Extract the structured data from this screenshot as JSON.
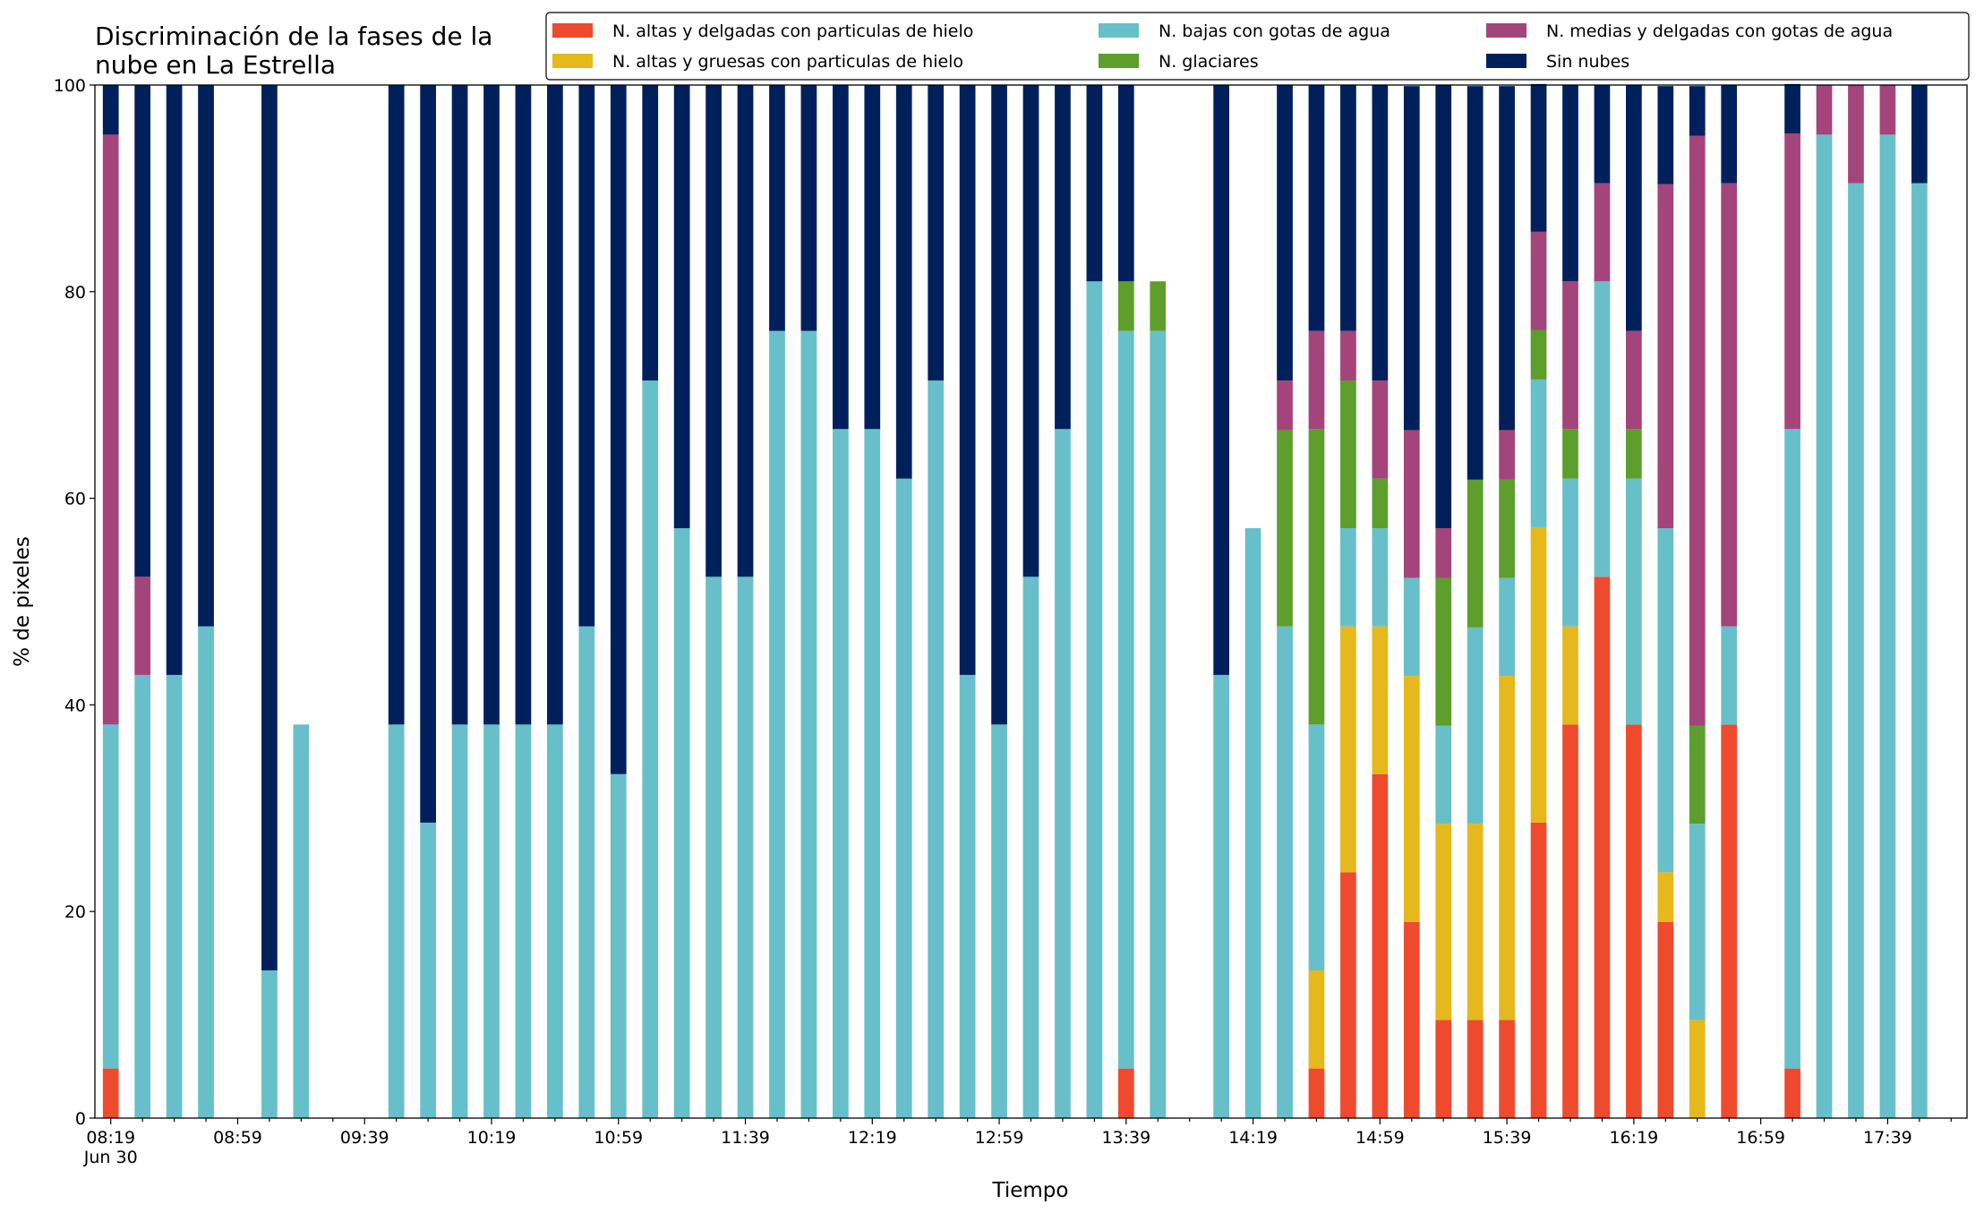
{
  "chart_data": {
    "type": "stacked_bar",
    "title": "Discriminación de la fases de la\nnube en La Estrella",
    "xlabel": "Tiempo",
    "ylabel": "% de pixeles",
    "categories": [
      "08:19\nJun 30",
      null,
      null,
      null,
      "08:59",
      null,
      null,
      null,
      "09:39",
      null,
      null,
      null,
      "10:19",
      null,
      null,
      null,
      "10:59",
      null,
      null,
      null,
      "11:39",
      null,
      null,
      null,
      "12:19",
      null,
      null,
      null,
      "12:59",
      null,
      null,
      null,
      "13:39",
      null,
      null,
      null,
      "14:19",
      null,
      null,
      null,
      "14:59",
      null,
      null,
      null,
      "15:39",
      null,
      null,
      null,
      "16:19",
      null,
      null,
      null,
      "16:59",
      null,
      null,
      null,
      "17:39",
      null,
      null
    ],
    "ylim": [
      0,
      100
    ],
    "yticks": [
      0,
      20,
      40,
      60,
      80,
      100
    ],
    "grid": false,
    "legend": "upper right",
    "series": [
      {
        "name": "N. altas y delgadas con particulas de hielo",
        "color": "#ef4a2e",
        "values": [
          4.8,
          0,
          0,
          0,
          0,
          0,
          0,
          0,
          0,
          0,
          0,
          0,
          0,
          0,
          0,
          0,
          0,
          0,
          0,
          0,
          0,
          0,
          0,
          0,
          0,
          0,
          0,
          0,
          0,
          0,
          0,
          0,
          4.8,
          0,
          0,
          0,
          0,
          0,
          4.8,
          23.8,
          33.3,
          19.0,
          9.5,
          9.5,
          9.5,
          28.6,
          38.1,
          52.4,
          38.1,
          19.0,
          0,
          38.1,
          0,
          4.8,
          0,
          0,
          0,
          0,
          0
        ]
      },
      {
        "name": "N. altas y gruesas con particulas de hielo",
        "color": "#e5b81b",
        "values": [
          0,
          0,
          0,
          0,
          0,
          0,
          0,
          0,
          0,
          0,
          0,
          0,
          0,
          0,
          0,
          0,
          0,
          0,
          0,
          0,
          0,
          0,
          0,
          0,
          0,
          0,
          0,
          0,
          0,
          0,
          0,
          0,
          0,
          0,
          0,
          0,
          0,
          0,
          9.5,
          23.8,
          14.3,
          23.8,
          19.0,
          19.0,
          33.3,
          28.6,
          9.5,
          0,
          0,
          4.8,
          9.5,
          0,
          0,
          0,
          0,
          0,
          0,
          0,
          0
        ]
      },
      {
        "name": "N. bajas con gotas de agua",
        "color": "#67bfca",
        "values": [
          33.3,
          42.9,
          42.9,
          47.6,
          0,
          14.3,
          38.1,
          0,
          0,
          38.1,
          28.6,
          38.1,
          38.1,
          38.1,
          38.1,
          47.6,
          33.3,
          71.4,
          57.1,
          52.4,
          52.4,
          76.2,
          76.2,
          66.7,
          66.7,
          61.9,
          71.4,
          42.9,
          38.1,
          52.4,
          66.7,
          81.0,
          71.4,
          76.2,
          0,
          42.9,
          57.1,
          47.6,
          23.8,
          9.5,
          9.5,
          9.5,
          9.5,
          19.0,
          9.5,
          14.3,
          14.3,
          28.6,
          23.8,
          33.3,
          19.0,
          9.5,
          0,
          61.9,
          95.2,
          90.5,
          95.2,
          90.5,
          0
        ]
      },
      {
        "name": "N. glaciares",
        "color": "#5d9e2c",
        "values": [
          0,
          0,
          0,
          0,
          0,
          0,
          0,
          0,
          0,
          0,
          0,
          0,
          0,
          0,
          0,
          0,
          0,
          0,
          0,
          0,
          0,
          0,
          0,
          0,
          0,
          0,
          0,
          0,
          0,
          0,
          0,
          0,
          4.8,
          4.8,
          0,
          0,
          0,
          19.0,
          28.6,
          14.3,
          4.8,
          0,
          14.3,
          14.3,
          9.5,
          4.8,
          4.8,
          0,
          4.8,
          0,
          9.5,
          0,
          0,
          0,
          0,
          0,
          0,
          0,
          0
        ]
      },
      {
        "name": "N. medias y delgadas con gotas de agua",
        "color": "#a3447a",
        "values": [
          57.1,
          9.5,
          0,
          0,
          0,
          0,
          0,
          0,
          0,
          0,
          0,
          0,
          0,
          0,
          0,
          0,
          0,
          0,
          0,
          0,
          0,
          0,
          0,
          0,
          0,
          0,
          0,
          0,
          0,
          0,
          0,
          0,
          0,
          0,
          0,
          0,
          0,
          4.8,
          9.5,
          4.8,
          9.5,
          14.3,
          4.8,
          0,
          4.8,
          9.5,
          14.3,
          9.5,
          9.5,
          33.3,
          57.1,
          42.9,
          0,
          28.6,
          4.8,
          9.5,
          4.8,
          0,
          0
        ]
      },
      {
        "name": "Sin nubes",
        "color": "#00205c",
        "values": [
          4.8,
          47.6,
          57.1,
          52.4,
          0,
          85.7,
          0,
          0,
          0,
          61.9,
          71.4,
          61.9,
          61.9,
          61.9,
          61.9,
          52.4,
          66.7,
          28.6,
          42.9,
          47.6,
          47.6,
          23.8,
          23.8,
          33.3,
          33.3,
          38.1,
          28.6,
          57.1,
          61.9,
          47.6,
          33.3,
          19.0,
          19.0,
          0,
          0,
          57.1,
          0,
          28.6,
          23.8,
          23.8,
          28.6,
          33.3,
          42.9,
          38.1,
          33.3,
          14.3,
          19.0,
          9.5,
          23.8,
          9.5,
          4.8,
          9.5,
          0,
          4.8,
          0,
          0,
          0,
          9.5,
          0
        ]
      }
    ]
  }
}
